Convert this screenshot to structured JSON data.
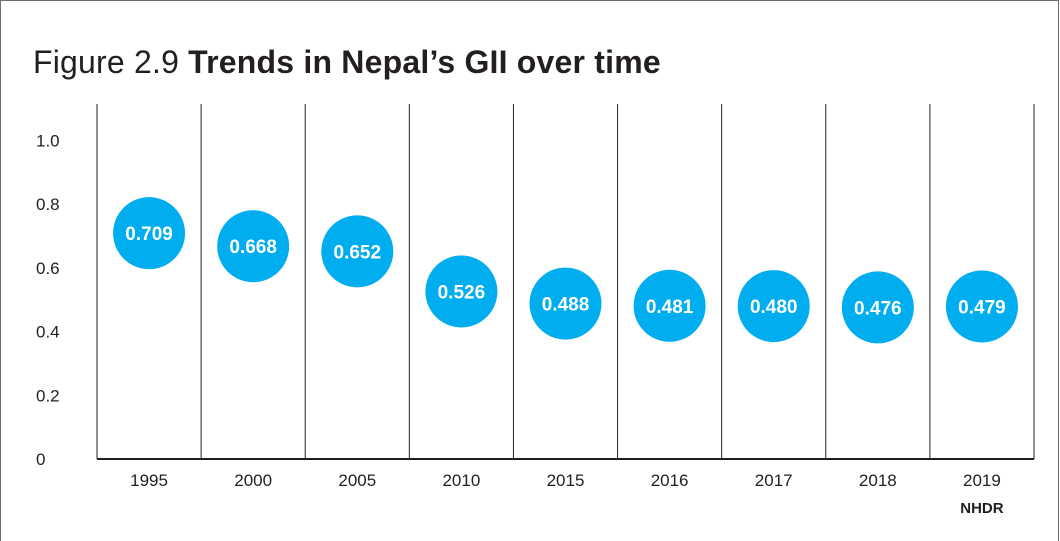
{
  "title": {
    "prefix": "Figure 2.9",
    "main": "Trends in Nepal’s GII over time"
  },
  "chart_data": {
    "type": "scatter",
    "categories": [
      "1995",
      "2000",
      "2005",
      "2010",
      "2015",
      "2016",
      "2017",
      "2018",
      "2019"
    ],
    "category_sublabels": [
      "",
      "",
      "",
      "",
      "",
      "",
      "",
      "",
      "NHDR"
    ],
    "values": [
      0.709,
      0.668,
      0.652,
      0.526,
      0.488,
      0.481,
      0.48,
      0.476,
      0.479
    ],
    "data_labels": [
      "0.709",
      "0.668",
      "0.652",
      "0.526",
      "0.488",
      "0.481",
      "0.480",
      "0.476",
      "0.479"
    ],
    "y_ticks": [
      0,
      0.2,
      0.4,
      0.6,
      0.8,
      1.0
    ],
    "y_tick_labels": [
      "0",
      "0.2",
      "0.4",
      "0.6",
      "0.8",
      "1.0"
    ],
    "ylim": [
      0,
      1.0
    ],
    "xlabel": "",
    "ylabel": "",
    "grid": "vertical separators",
    "colors": {
      "bubble": "#00aeef",
      "bubble_text": "#ffffff",
      "axis": "#231f20",
      "separator": "#231f20"
    }
  }
}
